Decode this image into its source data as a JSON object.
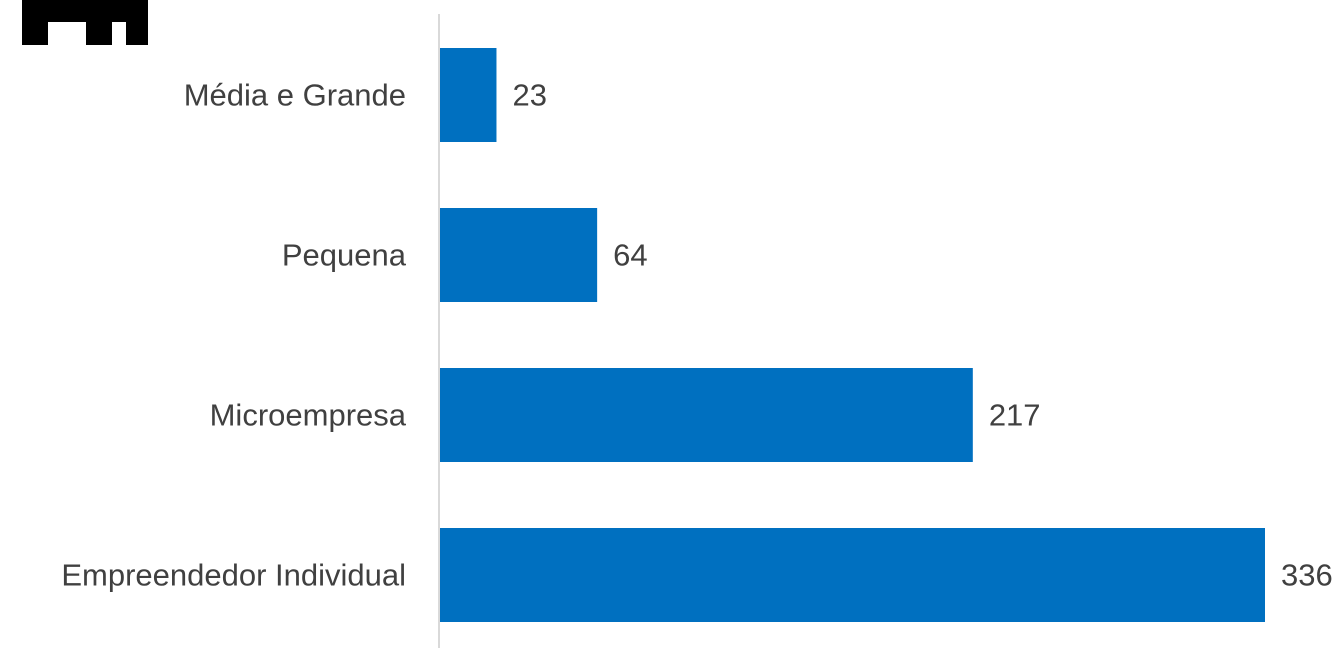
{
  "chart_data": {
    "type": "bar",
    "orientation": "horizontal",
    "categories": [
      "Média e Grande",
      "Pequena",
      "Microempresa",
      "Empreendedor Individual"
    ],
    "values": [
      23,
      64,
      217,
      336
    ],
    "title": "",
    "xlabel": "",
    "ylabel": "",
    "xlim": [
      0,
      336
    ],
    "grid": false,
    "legend": "none",
    "data_labels": true,
    "bar_color": "#0070C0",
    "text_color": "#404040",
    "axis_color": "#D9D9D9"
  },
  "logo": {
    "icon": "building-logo-icon",
    "color": "#000000"
  }
}
